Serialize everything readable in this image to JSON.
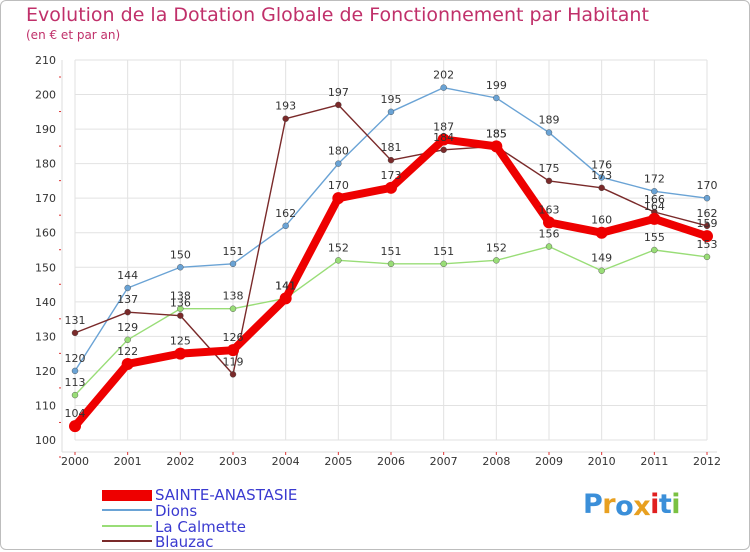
{
  "chart_data": {
    "type": "line",
    "title": "Evolution de la Dotation Globale de Fonctionnement par Habitant",
    "subtitle": "(en € et par an)",
    "xlabel": "",
    "ylabel": "",
    "ylim": [
      100,
      210
    ],
    "yticks": [
      100,
      110,
      120,
      130,
      140,
      150,
      160,
      170,
      180,
      190,
      200,
      210
    ],
    "grid": true,
    "legend_position": "bottom-left",
    "x": [
      "2000",
      "2001",
      "2002",
      "2003",
      "2004",
      "2005",
      "2006",
      "2007",
      "2008",
      "2009",
      "2010",
      "2011",
      "2012"
    ],
    "series": [
      {
        "name": "SAINTE-ANASTASIE",
        "color": "#ee0000",
        "values": [
          104,
          122,
          125,
          126,
          141,
          170,
          173,
          187,
          185,
          163,
          160,
          164,
          159
        ]
      },
      {
        "name": "Dions",
        "color": "#6aa3d5",
        "values": [
          120,
          144,
          150,
          151,
          162,
          180,
          195,
          202,
          199,
          189,
          176,
          172,
          170
        ]
      },
      {
        "name": "La Calmette",
        "color": "#99dd77",
        "values": [
          113,
          129,
          138,
          138,
          141,
          152,
          151,
          151,
          152,
          156,
          149,
          155,
          153
        ]
      },
      {
        "name": "Blauzac",
        "color": "#7a2a2a",
        "values": [
          131,
          137,
          136,
          119,
          193,
          197,
          181,
          184,
          185,
          175,
          173,
          166,
          162
        ]
      }
    ]
  },
  "logo": {
    "text": "Proxiti",
    "colors": [
      "#3b8fd9",
      "#e8a020",
      "#3b8fd9",
      "#e8a020",
      "#e02020",
      "#3b8fd9",
      "#7ac142"
    ]
  }
}
